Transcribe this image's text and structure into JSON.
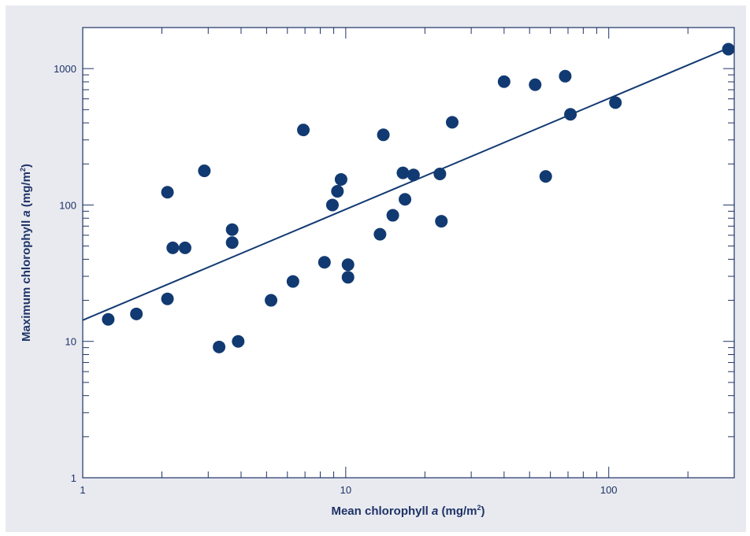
{
  "colors": {
    "panel_background": "#e8eaf0",
    "plot_background": "#ffffff",
    "axis_color": "#1f3366",
    "marker_color": "#123a72",
    "line_color": "#123a72"
  },
  "chart_data": {
    "type": "scatter",
    "title": "",
    "xlabel": {
      "prefix": "Mean chlorophyll ",
      "italic": "a",
      "suffix": " (mg/m",
      "superscript": "2",
      "close": ")"
    },
    "ylabel": {
      "prefix": "Maximum  chlorophyll ",
      "italic": "a",
      "suffix": " (mg/m",
      "superscript": "2",
      "close": ")"
    },
    "x_scale": "log",
    "y_scale": "log",
    "xlim": [
      1,
      300
    ],
    "ylim": [
      1,
      2000
    ],
    "x_ticks": [
      {
        "value": 1,
        "label": "1"
      },
      {
        "value": 10,
        "label": "10"
      },
      {
        "value": 100,
        "label": "100"
      }
    ],
    "y_ticks": [
      {
        "value": 1,
        "label": "1"
      },
      {
        "value": 10,
        "label": "10"
      },
      {
        "value": 100,
        "label": "100"
      },
      {
        "value": 1000,
        "label": "1000"
      }
    ],
    "grid": false,
    "legend": "none",
    "series": [
      {
        "x": [
          1.25,
          1.6,
          2.1,
          2.1,
          2.2,
          2.45,
          2.9,
          3.3,
          3.7,
          3.7,
          3.9,
          5.2,
          6.3,
          6.9,
          8.3,
          8.9,
          9.3,
          9.6,
          10.2,
          10.2,
          13.5,
          13.9,
          15.1,
          16.5,
          16.8,
          18.1,
          22.8,
          23.1,
          25.4,
          40.0,
          52.5,
          57.6,
          68.3,
          71.5,
          106.0,
          285.0
        ],
        "y": [
          14.5,
          15.9,
          20.5,
          124,
          48.5,
          48.5,
          178,
          9.1,
          53,
          66,
          10,
          20,
          27.5,
          355,
          38,
          100,
          126,
          154,
          36.5,
          29.5,
          61,
          327,
          84,
          172,
          110,
          166,
          169,
          76,
          404,
          802,
          762,
          162,
          880,
          462,
          563,
          1388
        ]
      }
    ],
    "trendline": {
      "x": [
        1,
        285
      ],
      "y": [
        14.3,
        1415
      ]
    }
  }
}
